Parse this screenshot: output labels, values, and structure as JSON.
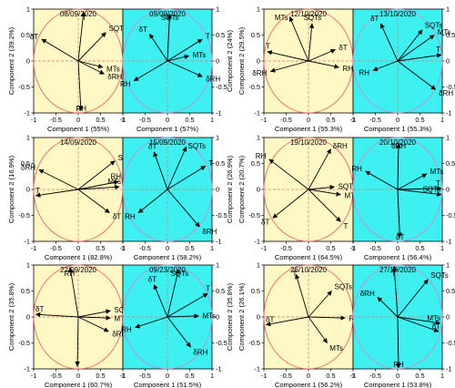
{
  "colors": {
    "left_panel_bg": "#fff7c4",
    "right_panel_bg": "#3ff0f0",
    "left_circle": "#e86a6a",
    "right_circle": "#c98bd0",
    "arrow": "#000000",
    "dashed_axis": "#e77070"
  },
  "axis_ticks": {
    "x": [
      "-1",
      "-0.5",
      "0",
      "0.5",
      "1"
    ],
    "y": [
      "-1",
      "-0.5",
      "0",
      "0.5",
      "1"
    ],
    "x_values": [
      -1,
      -0.5,
      0,
      0.5,
      1
    ],
    "y_values": [
      -1,
      -0.5,
      0,
      0.5,
      1
    ]
  },
  "chart_data": [
    {
      "type": "scatter",
      "subtype": "pca-biplot",
      "title": "08/09/2020",
      "xlabel": "Component 1 (55%)",
      "ylabel": "Component 2 (39.2%)",
      "xlim": [
        -1,
        1
      ],
      "ylim": [
        -1,
        1
      ],
      "vectors": [
        {
          "name": "δT",
          "x": -0.82,
          "y": 0.42
        },
        {
          "name": "T",
          "x": 0.12,
          "y": 0.95
        },
        {
          "name": "SQTs",
          "x": 0.62,
          "y": 0.55
        },
        {
          "name": "MTs",
          "x": 0.55,
          "y": -0.12
        },
        {
          "name": "δRH",
          "x": 0.58,
          "y": -0.25
        },
        {
          "name": "RH",
          "x": 0.06,
          "y": -0.95
        }
      ]
    },
    {
      "type": "scatter",
      "subtype": "pca-biplot",
      "title": "09/09/2020",
      "xlabel": "Component 1 (57%)",
      "ylabel": "Component 2 (24%)",
      "xlim": [
        -1,
        1
      ],
      "ylim": [
        -1,
        1
      ],
      "vectors": [
        {
          "name": "SQTs",
          "x": 0.05,
          "y": 0.9
        },
        {
          "name": "δT",
          "x": -0.4,
          "y": 0.52
        },
        {
          "name": "T",
          "x": 0.78,
          "y": 0.42
        },
        {
          "name": "MTs",
          "x": 0.48,
          "y": 0.1
        },
        {
          "name": "RH",
          "x": -0.75,
          "y": -0.38
        },
        {
          "name": "δRH",
          "x": 0.78,
          "y": -0.3
        }
      ]
    },
    {
      "type": "scatter",
      "subtype": "pca-biplot",
      "title": "12/10/2020",
      "xlabel": "Component 1 (55.3%)",
      "ylabel": "Component 2 (29.5%)",
      "xlim": [
        -1,
        1
      ],
      "ylim": [
        -1,
        1
      ],
      "vectors": [
        {
          "name": "MTs",
          "x": -0.42,
          "y": 0.85
        },
        {
          "name": "SQTs",
          "x": 0.08,
          "y": 0.72
        },
        {
          "name": "T",
          "x": -0.92,
          "y": 0.18
        },
        {
          "name": "δRH",
          "x": -0.85,
          "y": -0.2
        },
        {
          "name": "δT",
          "x": 0.6,
          "y": 0.22
        },
        {
          "name": "RH",
          "x": 0.68,
          "y": -0.12
        }
      ]
    },
    {
      "type": "scatter",
      "subtype": "pca-biplot",
      "title": "13/10/2020",
      "xlabel": "Component 1 (55.3%)",
      "ylabel": "Component 2 (23.8%)",
      "xlim": [
        -1,
        1
      ],
      "ylim": [
        -1,
        1
      ],
      "vectors": [
        {
          "name": "δT",
          "x": -0.38,
          "y": 0.72
        },
        {
          "name": "SQTs",
          "x": 0.55,
          "y": 0.6
        },
        {
          "name": "MTs",
          "x": 0.82,
          "y": 0.5
        },
        {
          "name": "T",
          "x": 0.98,
          "y": 0.12
        },
        {
          "name": "RH",
          "x": -0.55,
          "y": -0.18
        },
        {
          "name": "δRH",
          "x": 0.85,
          "y": -0.55
        }
      ]
    },
    {
      "type": "scatter",
      "subtype": "pca-biplot",
      "title": "14/09/2020",
      "xlabel": "Component 1 (82.8%)",
      "ylabel": "Component 2 (16.9%)",
      "xlim": [
        -1,
        1
      ],
      "ylim": [
        -1,
        1
      ],
      "vectors": [
        {
          "name": "SQTs",
          "x": 0.82,
          "y": 0.55
        },
        {
          "name": "δRH",
          "x": -0.88,
          "y": 0.38
        },
        {
          "name": "RH",
          "x": 0.9,
          "y": 0.15
        },
        {
          "name": "MTs",
          "x": 0.92,
          "y": 0.05
        },
        {
          "name": "T",
          "x": -0.95,
          "y": -0.12
        },
        {
          "name": "δT",
          "x": 0.7,
          "y": -0.45
        }
      ]
    },
    {
      "type": "scatter",
      "subtype": "pca-biplot",
      "title": "15/09/2020",
      "xlabel": "Component 1 (58.2%)",
      "ylabel": "Component 2 (26.9%)",
      "xlim": [
        -1,
        1
      ],
      "ylim": [
        -1,
        1
      ],
      "vectors": [
        {
          "name": "SQTs",
          "x": 0.42,
          "y": 0.82
        },
        {
          "name": "δT",
          "x": -0.3,
          "y": 0.72
        },
        {
          "name": "T",
          "x": 0.85,
          "y": 0.45
        },
        {
          "name": "RH",
          "x": -0.65,
          "y": -0.45
        },
        {
          "name": "δRH",
          "x": 0.72,
          "y": -0.72
        }
      ]
    },
    {
      "type": "scatter",
      "subtype": "pca-biplot",
      "title": "19/10/2020",
      "xlabel": "Component 1 (64.5%)",
      "ylabel": "Component 2 (20.7%)",
      "xlim": [
        -1,
        1
      ],
      "ylim": [
        -1,
        1
      ],
      "vectors": [
        {
          "name": "RH",
          "x": -0.88,
          "y": 0.58
        },
        {
          "name": "δRH",
          "x": 0.5,
          "y": 0.78
        },
        {
          "name": "δT",
          "x": -0.8,
          "y": -0.55
        },
        {
          "name": "SQTs",
          "x": 0.58,
          "y": 0.05
        },
        {
          "name": "MTs",
          "x": 0.72,
          "y": -0.1
        },
        {
          "name": "T",
          "x": 0.72,
          "y": -0.62
        }
      ]
    },
    {
      "type": "scatter",
      "subtype": "pca-biplot",
      "title": "20/10/2020",
      "xlabel": "Component 1 (56.4%)",
      "ylabel": "Component 2 (36.8%)",
      "xlim": [
        -1,
        1
      ],
      "ylim": [
        -1,
        1
      ],
      "vectors": [
        {
          "name": "δRH",
          "x": 0.02,
          "y": 0.88
        },
        {
          "name": "RH",
          "x": -0.72,
          "y": 0.35
        },
        {
          "name": "MTs",
          "x": 0.65,
          "y": 0.3
        },
        {
          "name": "T",
          "x": 0.98,
          "y": 0.02
        },
        {
          "name": "SQTs",
          "x": 0.98,
          "y": -0.1
        },
        {
          "name": "δT",
          "x": 0.05,
          "y": -0.92
        }
      ]
    },
    {
      "type": "scatter",
      "subtype": "pca-biplot",
      "title": "22/09/2020",
      "xlabel": "Component 1 (60.7%)",
      "ylabel": "Component 2 (35.8%)",
      "xlim": [
        -1,
        1
      ],
      "ylim": [
        -1,
        1
      ],
      "vectors": [
        {
          "name": "RH",
          "x": -0.18,
          "y": 0.95
        },
        {
          "name": "δT",
          "x": -0.95,
          "y": 0.05
        },
        {
          "name": "SQTs",
          "x": 0.72,
          "y": 0.12
        },
        {
          "name": "MTs",
          "x": 0.72,
          "y": -0.02
        },
        {
          "name": "δRH",
          "x": 0.68,
          "y": -0.28
        },
        {
          "name": "T",
          "x": -0.02,
          "y": -0.95
        }
      ]
    },
    {
      "type": "scatter",
      "subtype": "pca-biplot",
      "title": "09/23/2020",
      "xlabel": "Component 1 (51.5%)",
      "ylabel": "Component 2 (35.8%)",
      "xlim": [
        -1,
        1
      ],
      "ylim": [
        -1,
        1
      ],
      "vectors": [
        {
          "name": "SQTs",
          "x": 0.25,
          "y": 0.92
        },
        {
          "name": "δT",
          "x": -0.3,
          "y": 0.62
        },
        {
          "name": "T",
          "x": 0.9,
          "y": 0.45
        },
        {
          "name": "MTs",
          "x": 0.7,
          "y": 0.02
        },
        {
          "name": "RH",
          "x": -0.72,
          "y": -0.2
        },
        {
          "name": "δRH",
          "x": 0.52,
          "y": -0.58
        }
      ]
    },
    {
      "type": "scatter",
      "subtype": "pca-biplot",
      "title": "26/10/2020",
      "xlabel": "Component 1 (56.2%)",
      "ylabel": "Component 2 (26.1%)",
      "xlim": [
        -1,
        1
      ],
      "ylim": [
        -1,
        1
      ],
      "vectors": [
        {
          "name": "T",
          "x": -0.28,
          "y": 0.82
        },
        {
          "name": "SQTs",
          "x": 0.52,
          "y": 0.5
        },
        {
          "name": "δT",
          "x": -0.95,
          "y": -0.15
        },
        {
          "name": "RH",
          "x": 0.82,
          "y": -0.02
        },
        {
          "name": "MTs",
          "x": 0.42,
          "y": -0.5
        }
      ]
    },
    {
      "type": "scatter",
      "subtype": "pca-biplot",
      "title": "27/10/2020",
      "xlabel": "Component 1 (53.8%)",
      "ylabel": "Component 2 (35.4%)",
      "xlim": [
        -1,
        1
      ],
      "ylim": [
        -1,
        1
      ],
      "vectors": [
        {
          "name": "T",
          "x": -0.08,
          "y": 0.98
        },
        {
          "name": "SQTs",
          "x": 0.68,
          "y": 0.72
        },
        {
          "name": "δRH",
          "x": -0.45,
          "y": 0.38
        },
        {
          "name": "MTs",
          "x": 0.95,
          "y": -0.12
        },
        {
          "name": "δT",
          "x": 0.92,
          "y": -0.28
        },
        {
          "name": "RH",
          "x": 0.02,
          "y": -0.98
        }
      ]
    }
  ]
}
